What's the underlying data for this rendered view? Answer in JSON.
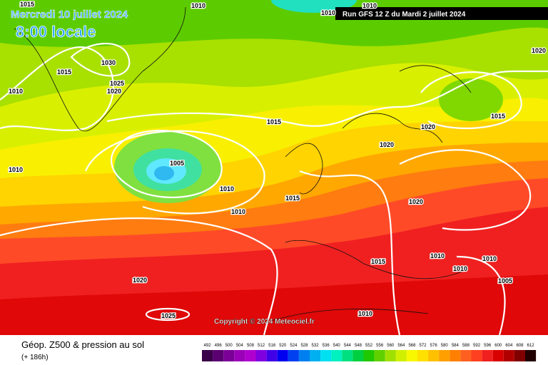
{
  "header": {
    "date": "Mercredi 10 juillet 2024",
    "time": "8:00 locale",
    "run": "Run GFS 12 Z du Mardi 2 juillet 2024"
  },
  "copyright": "Copyright © 2024 Meteociel.fr",
  "footer": {
    "title": "Géop. Z500 & pression au sol",
    "lead": "(+ 186h)"
  },
  "isobar_labels": [
    "1015",
    "1010",
    "1010",
    "1015",
    "1030",
    "1025",
    "1020",
    "1010",
    "1020",
    "1015",
    "1010",
    "1005",
    "1010",
    "1010",
    "1010",
    "1015",
    "1020",
    "1020",
    "1015",
    "1020",
    "1015",
    "1010",
    "1010",
    "1010",
    "1005",
    "1020",
    "1025",
    "1010"
  ],
  "legend": [
    {
      "value": 492,
      "color": "#3a0048"
    },
    {
      "value": 496,
      "color": "#5a0070"
    },
    {
      "value": 500,
      "color": "#7a0098"
    },
    {
      "value": 504,
      "color": "#9a00b8"
    },
    {
      "value": 508,
      "color": "#b000d0"
    },
    {
      "value": 512,
      "color": "#8000e0"
    },
    {
      "value": 516,
      "color": "#4000e8"
    },
    {
      "value": 520,
      "color": "#0000f0"
    },
    {
      "value": 524,
      "color": "#0040f0"
    },
    {
      "value": 528,
      "color": "#0080f0"
    },
    {
      "value": 532,
      "color": "#00b0f0"
    },
    {
      "value": 536,
      "color": "#00e0f0"
    },
    {
      "value": 540,
      "color": "#00f0c0"
    },
    {
      "value": 544,
      "color": "#00e080"
    },
    {
      "value": 548,
      "color": "#00d040"
    },
    {
      "value": 552,
      "color": "#20c800"
    },
    {
      "value": 556,
      "color": "#60d000"
    },
    {
      "value": 560,
      "color": "#a0e000"
    },
    {
      "value": 564,
      "color": "#d0f000"
    },
    {
      "value": 568,
      "color": "#f8f800"
    },
    {
      "value": 572,
      "color": "#ffe000"
    },
    {
      "value": 576,
      "color": "#ffc000"
    },
    {
      "value": 580,
      "color": "#ffa000"
    },
    {
      "value": 584,
      "color": "#ff8000"
    },
    {
      "value": 588,
      "color": "#ff6020"
    },
    {
      "value": 592,
      "color": "#ff4020"
    },
    {
      "value": 596,
      "color": "#f02020"
    },
    {
      "value": 600,
      "color": "#d80000"
    },
    {
      "value": 604,
      "color": "#b00000"
    },
    {
      "value": 608,
      "color": "#800000"
    },
    {
      "value": 612,
      "color": "#200000"
    }
  ]
}
